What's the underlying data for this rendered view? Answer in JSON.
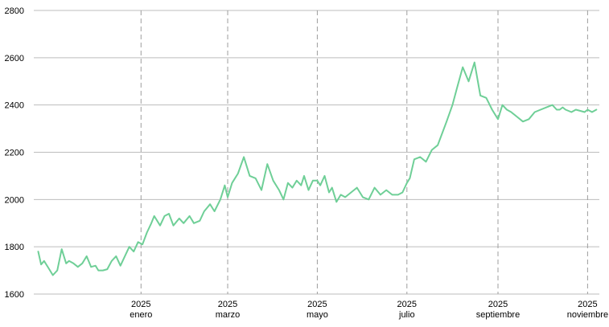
{
  "chart_data": {
    "type": "line",
    "title": "",
    "xlabel": "",
    "ylabel": "",
    "ylim": [
      1600,
      2800
    ],
    "y_ticks": [
      1600,
      1800,
      2000,
      2200,
      2400,
      2600,
      2800
    ],
    "grid": {
      "horizontal": "solid",
      "vertical": "dashed"
    },
    "x_ticks": [
      {
        "date": "2025-01-01",
        "year": "2025",
        "month": "enero"
      },
      {
        "date": "2025-03-01",
        "year": "2025",
        "month": "marzo"
      },
      {
        "date": "2025-05-01",
        "year": "2025",
        "month": "mayo"
      },
      {
        "date": "2025-07-01",
        "year": "2025",
        "month": "julio"
      },
      {
        "date": "2025-09-01",
        "year": "2025",
        "month": "septiembre"
      },
      {
        "date": "2025-11-01",
        "year": "2025",
        "month": "noviembre"
      }
    ],
    "xlim": [
      "2024-10-20",
      "2025-11-09"
    ],
    "line_color": "#6fcf97",
    "series": [
      {
        "x": [
          "2024-10-23",
          "2024-10-25",
          "2024-10-27",
          "2024-10-30",
          "2024-11-02",
          "2024-11-05",
          "2024-11-08",
          "2024-11-11",
          "2024-11-13",
          "2024-11-16",
          "2024-11-19",
          "2024-11-22",
          "2024-11-25",
          "2024-11-28",
          "2024-12-01",
          "2024-12-03",
          "2024-12-06",
          "2024-12-09",
          "2024-12-12",
          "2024-12-15",
          "2024-12-18",
          "2024-12-21",
          "2024-12-24",
          "2024-12-27",
          "2024-12-30",
          "2025-01-02",
          "2025-01-05",
          "2025-01-08",
          "2025-01-10",
          "2025-01-14",
          "2025-01-17",
          "2025-01-20",
          "2025-01-23",
          "2025-01-27",
          "2025-01-30",
          "2025-02-03",
          "2025-02-06",
          "2025-02-10",
          "2025-02-13",
          "2025-02-17",
          "2025-02-20",
          "2025-02-24",
          "2025-02-27",
          "2025-03-01",
          "2025-03-04",
          "2025-03-08",
          "2025-03-12",
          "2025-03-16",
          "2025-03-20",
          "2025-03-24",
          "2025-03-28",
          "2025-04-01",
          "2025-04-05",
          "2025-04-08",
          "2025-04-11",
          "2025-04-14",
          "2025-04-17",
          "2025-04-20",
          "2025-04-22",
          "2025-04-25",
          "2025-04-28",
          "2025-05-01",
          "2025-05-03",
          "2025-05-06",
          "2025-05-09",
          "2025-05-11",
          "2025-05-14",
          "2025-05-17",
          "2025-05-20",
          "2025-05-24",
          "2025-05-28",
          "2025-06-01",
          "2025-06-05",
          "2025-06-09",
          "2025-06-13",
          "2025-06-17",
          "2025-06-21",
          "2025-06-25",
          "2025-06-28",
          "2025-07-01",
          "2025-07-03",
          "2025-07-06",
          "2025-07-10",
          "2025-07-14",
          "2025-07-18",
          "2025-07-22",
          "2025-07-25",
          "2025-07-28",
          "2025-08-01",
          "2025-08-04",
          "2025-08-08",
          "2025-08-12",
          "2025-08-16",
          "2025-08-20",
          "2025-08-24",
          "2025-08-28",
          "2025-09-01",
          "2025-09-04",
          "2025-09-07",
          "2025-09-10",
          "2025-09-14",
          "2025-09-18",
          "2025-09-22",
          "2025-09-26",
          "2025-09-30",
          "2025-10-04",
          "2025-10-08",
          "2025-10-11",
          "2025-10-13",
          "2025-10-15",
          "2025-10-17",
          "2025-10-19",
          "2025-10-21",
          "2025-10-24",
          "2025-10-27",
          "2025-10-30",
          "2025-11-01",
          "2025-11-04",
          "2025-11-07"
        ],
        "y": [
          1780,
          1725,
          1740,
          1710,
          1680,
          1700,
          1790,
          1730,
          1740,
          1730,
          1715,
          1730,
          1760,
          1715,
          1720,
          1700,
          1700,
          1705,
          1740,
          1760,
          1720,
          1760,
          1800,
          1780,
          1820,
          1810,
          1860,
          1900,
          1930,
          1890,
          1930,
          1940,
          1890,
          1920,
          1900,
          1930,
          1900,
          1910,
          1950,
          1980,
          1950,
          2000,
          2060,
          2010,
          2070,
          2110,
          2180,
          2100,
          2090,
          2040,
          2150,
          2080,
          2040,
          2000,
          2070,
          2050,
          2080,
          2060,
          2100,
          2040,
          2080,
          2080,
          2060,
          2100,
          2030,
          2050,
          1990,
          2020,
          2010,
          2030,
          2050,
          2010,
          2000,
          2050,
          2020,
          2040,
          2020,
          2020,
          2030,
          2070,
          2090,
          2170,
          2180,
          2160,
          2210,
          2230,
          2280,
          2330,
          2400,
          2470,
          2560,
          2500,
          2580,
          2440,
          2430,
          2380,
          2340,
          2400,
          2380,
          2370,
          2350,
          2330,
          2340,
          2370,
          2380,
          2390,
          2400,
          2380,
          2380,
          2390,
          2380,
          2375,
          2370,
          2380,
          2375,
          2370,
          2380,
          2370,
          2380
        ]
      }
    ]
  }
}
